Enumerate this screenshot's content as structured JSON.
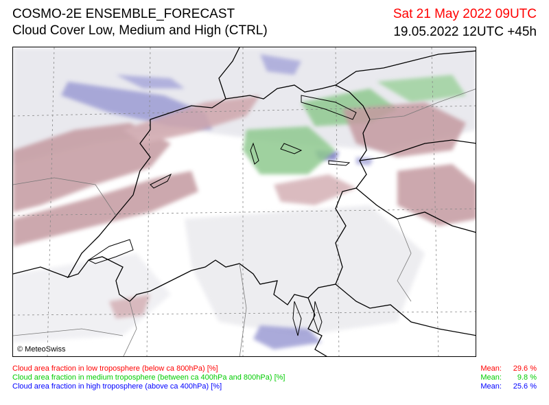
{
  "header": {
    "title": "COSMO-2E ENSEMBLE_FORECAST",
    "subtitle": "Cloud Cover Low, Medium and High (CTRL)",
    "valid_time": "Sat 21 May 2022 09UTC",
    "lead_time": "19.05.2022 12UTC +45h"
  },
  "map": {
    "copyright": "© MeteoSwiss"
  },
  "legend": [
    {
      "label": "Cloud area fraction in low troposphere (below ca 800hPa) [%]",
      "mean_label": "Mean:",
      "mean": "29.6 %",
      "color": "#ff0000"
    },
    {
      "label": "Cloud area fraction in medium troposphere (between ca 400hPa and 800hPa) [%]",
      "mean_label": "Mean:",
      "mean": "9.8 %",
      "color": "#00cc00"
    },
    {
      "label": "Cloud area fraction in high troposphere (above ca 400hPa) [%]",
      "mean_label": "Mean:",
      "mean": "25.6 %",
      "color": "#0000ff"
    }
  ],
  "colors": {
    "low_cloud": "#c49aa0",
    "medium_cloud": "#8fc98f",
    "high_cloud": "#9c9cd4",
    "thin_cloud": "#e6e6ec"
  }
}
